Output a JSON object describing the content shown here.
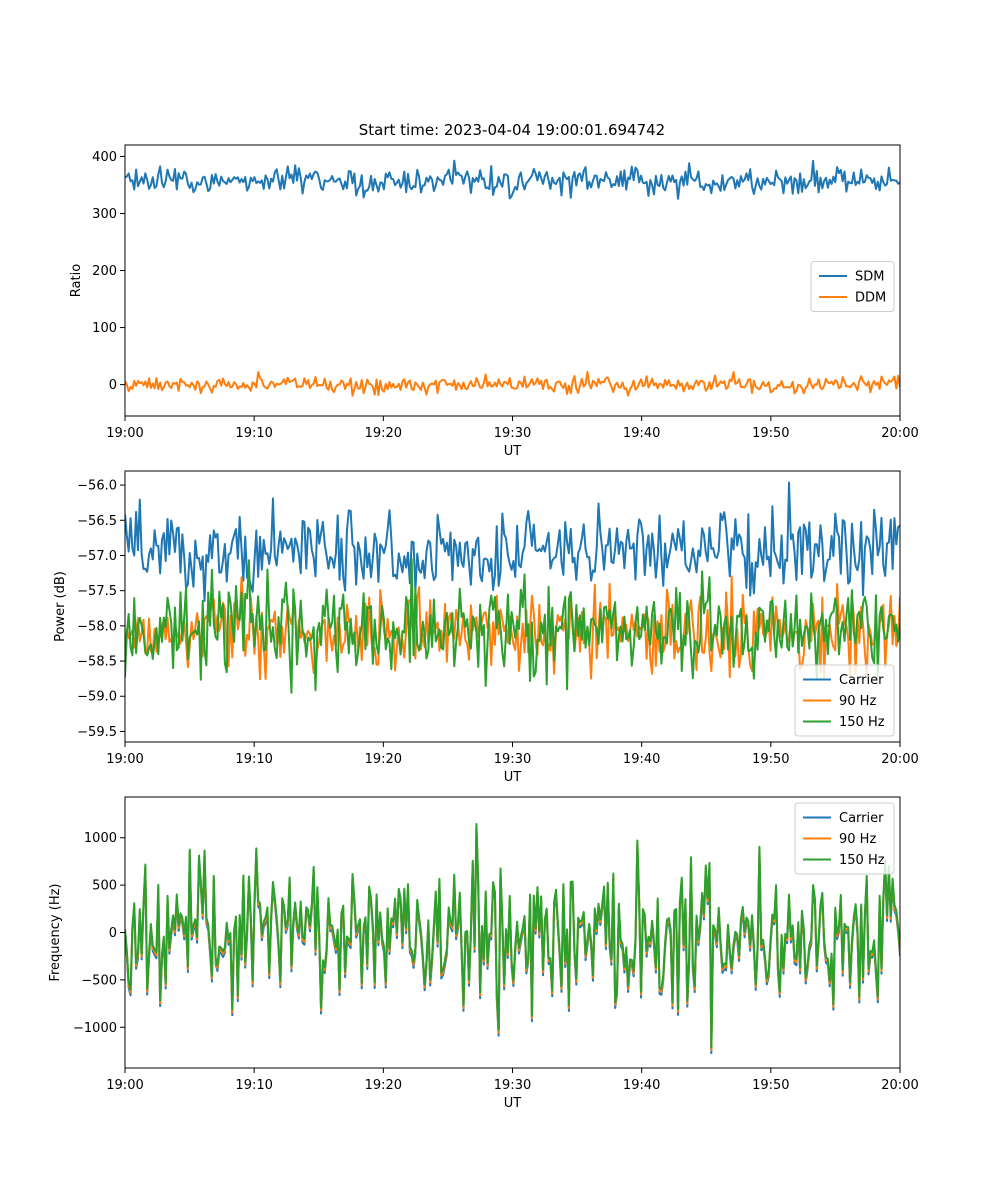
{
  "colors": {
    "blue": "#1f77b4",
    "orange": "#ff7f0e",
    "green": "#2ca02c"
  },
  "chart_data": [
    {
      "type": "line",
      "title": "Start time: 2023-04-04 19:00:01.694742",
      "xlabel": "UT",
      "ylabel": "Ratio",
      "xticks": [
        "19:00",
        "19:10",
        "19:20",
        "19:30",
        "19:40",
        "19:50",
        "20:00"
      ],
      "xlim_minutes": [
        0,
        60
      ],
      "ylim": [
        -55,
        420
      ],
      "yticks": [
        0,
        100,
        200,
        300,
        400
      ],
      "legend": "center-right",
      "grid": false,
      "series": [
        {
          "name": "SDM",
          "color": "#1f77b4",
          "mean": 357,
          "std": 12,
          "min": 310,
          "max": 398
        },
        {
          "name": "DDM",
          "color": "#ff7f0e",
          "mean": 0,
          "std": 7,
          "min": -30,
          "max": 22
        }
      ]
    },
    {
      "type": "line",
      "title": "",
      "xlabel": "UT",
      "ylabel": "Power (dB)",
      "xticks": [
        "19:00",
        "19:10",
        "19:20",
        "19:30",
        "19:40",
        "19:50",
        "20:00"
      ],
      "xlim_minutes": [
        0,
        60
      ],
      "ylim": [
        -59.65,
        -55.8
      ],
      "yticks": [
        -59.5,
        -59.0,
        -58.5,
        -58.0,
        -57.5,
        -57.0,
        -56.5,
        -56.0
      ],
      "ytick_labels": [
        "−59.5",
        "−59.0",
        "−58.5",
        "−58.0",
        "−57.5",
        "−57.0",
        "−56.5",
        "−56.0"
      ],
      "legend": "lower-right",
      "grid": false,
      "series": [
        {
          "name": "Carrier",
          "color": "#1f77b4",
          "mean": -56.95,
          "std": 0.28,
          "min": -57.75,
          "max": -55.95
        },
        {
          "name": "90 Hz",
          "color": "#ff7f0e",
          "mean": -58.1,
          "std": 0.3,
          "min": -59.2,
          "max": -57.1
        },
        {
          "name": "150 Hz",
          "color": "#2ca02c",
          "mean": -58.05,
          "std": 0.32,
          "min": -59.5,
          "max": -57.05
        }
      ]
    },
    {
      "type": "line",
      "title": "",
      "xlabel": "UT",
      "ylabel": "Frequency (Hz)",
      "xticks": [
        "19:00",
        "19:10",
        "19:20",
        "19:30",
        "19:40",
        "19:50",
        "20:00"
      ],
      "xlim_minutes": [
        0,
        60
      ],
      "ylim": [
        -1430,
        1430
      ],
      "yticks": [
        -1000,
        -500,
        0,
        500,
        1000
      ],
      "ytick_labels": [
        "−1000",
        "−500",
        "0",
        "500",
        "1000"
      ],
      "legend": "upper-right",
      "grid": false,
      "series": [
        {
          "name": "Carrier",
          "color": "#1f77b4",
          "mean": -40,
          "std": 380,
          "min": -1300,
          "max": 1250
        },
        {
          "name": "90 Hz",
          "color": "#ff7f0e",
          "mean": -10,
          "std": 380,
          "min": -1270,
          "max": 1280
        },
        {
          "name": "150 Hz",
          "color": "#2ca02c",
          "mean": 20,
          "std": 380,
          "min": -1240,
          "max": 1310
        }
      ]
    }
  ]
}
